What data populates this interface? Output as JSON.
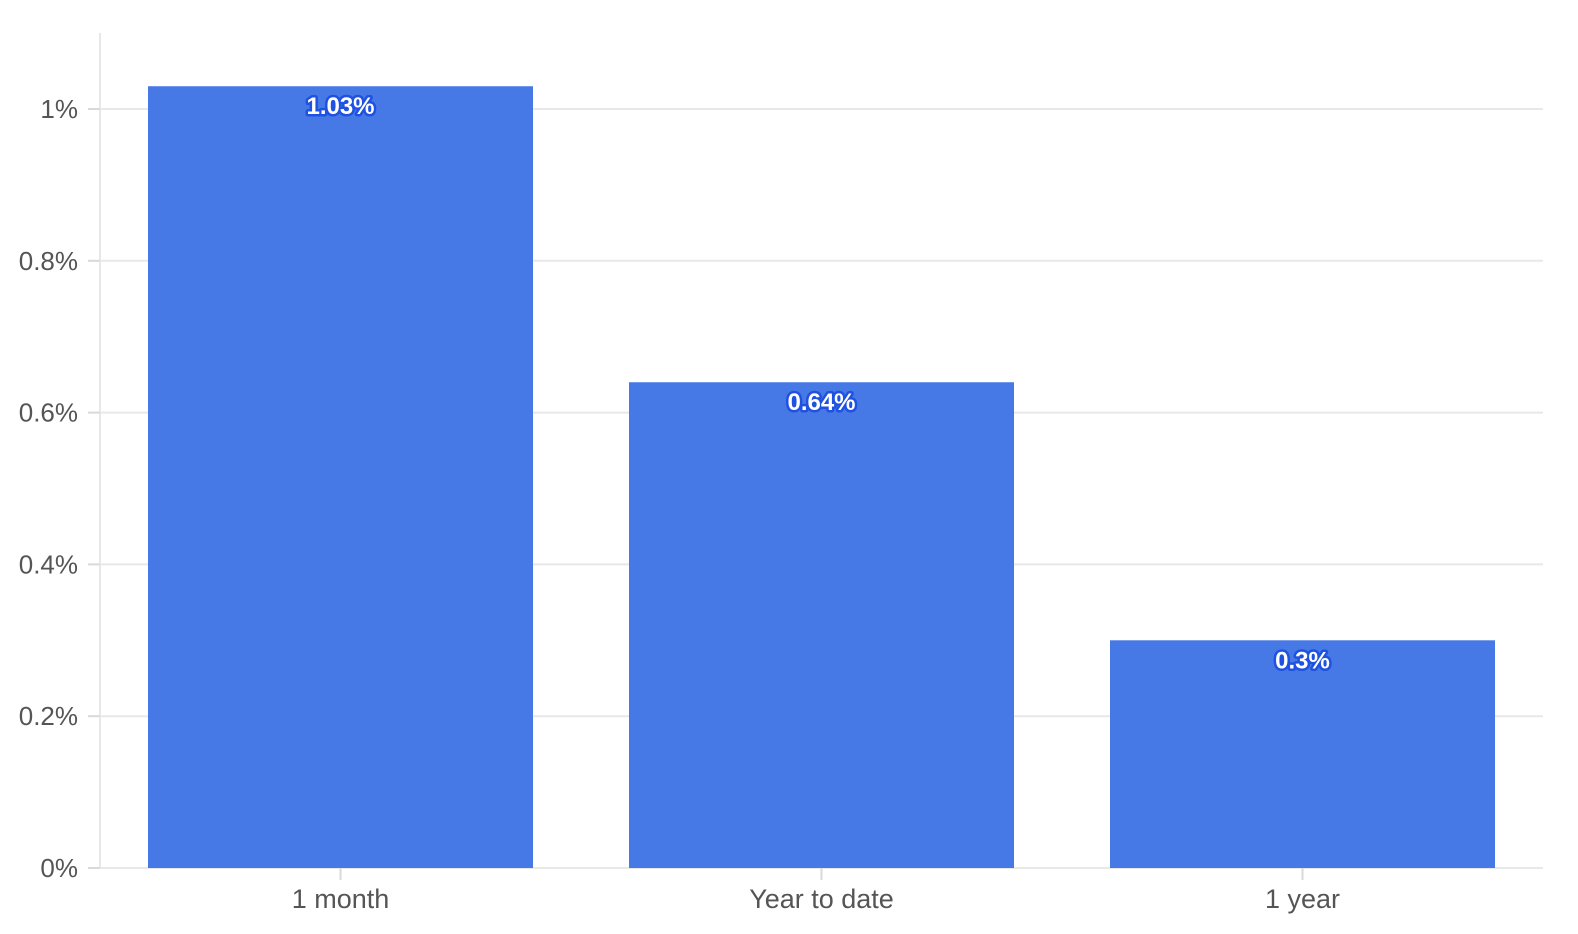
{
  "colors": {
    "bar": "#4779e6",
    "data_label_text": "#ffffff",
    "data_label_outline": "#1f52e0",
    "grid": "#e8e8e8",
    "tick_text": "#555555"
  },
  "chart_data": {
    "type": "bar",
    "title": "",
    "xlabel": "",
    "ylabel": "",
    "categories": [
      "1 month",
      "Year to date",
      "1 year"
    ],
    "values": [
      1.03,
      0.64,
      0.3
    ],
    "value_labels": [
      "1.03%",
      "0.64%",
      "0.3%"
    ],
    "ylim": [
      0,
      1.1
    ],
    "y_ticks": [
      0,
      0.2,
      0.4,
      0.6,
      0.8,
      1.0
    ],
    "y_tick_labels": [
      "0%",
      "0.2%",
      "0.4%",
      "0.6%",
      "0.8%",
      "1%"
    ],
    "grid": true,
    "legend": "none"
  }
}
